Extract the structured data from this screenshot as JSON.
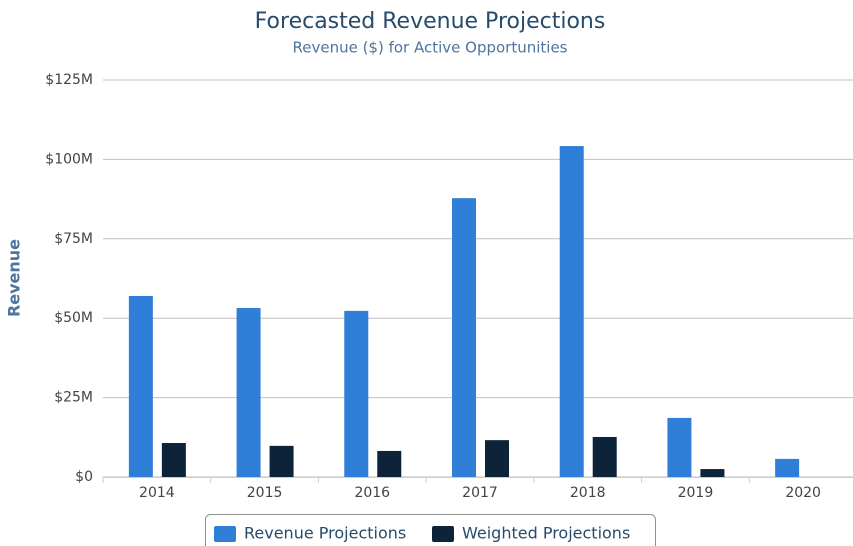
{
  "chart_data": {
    "type": "bar",
    "title": "Forecasted Revenue Projections",
    "subtitle": "Revenue ($) for Active Opportunities",
    "y_label": "Revenue",
    "categories": [
      "2014",
      "2015",
      "2016",
      "2017",
      "2018",
      "2019",
      "2020"
    ],
    "series": [
      {
        "name": "Revenue Projections",
        "color": "#2f7ed8",
        "values": [
          57000000,
          53200000,
          52300000,
          87800000,
          104200000,
          18600000,
          5700000
        ]
      },
      {
        "name": "Weighted Projections",
        "color": "#0d233a",
        "values": [
          10700000,
          9800000,
          8200000,
          11600000,
          12600000,
          2500000,
          0
        ]
      }
    ],
    "ylim": [
      0,
      125000000
    ],
    "yticks": [
      {
        "value": 0,
        "label": "$0"
      },
      {
        "value": 25000000,
        "label": "$25M"
      },
      {
        "value": 50000000,
        "label": "$50M"
      },
      {
        "value": 75000000,
        "label": "$75M"
      },
      {
        "value": 100000000,
        "label": "$100M"
      },
      {
        "value": 125000000,
        "label": "$125M"
      }
    ],
    "grid": true,
    "legend": "bottom"
  }
}
